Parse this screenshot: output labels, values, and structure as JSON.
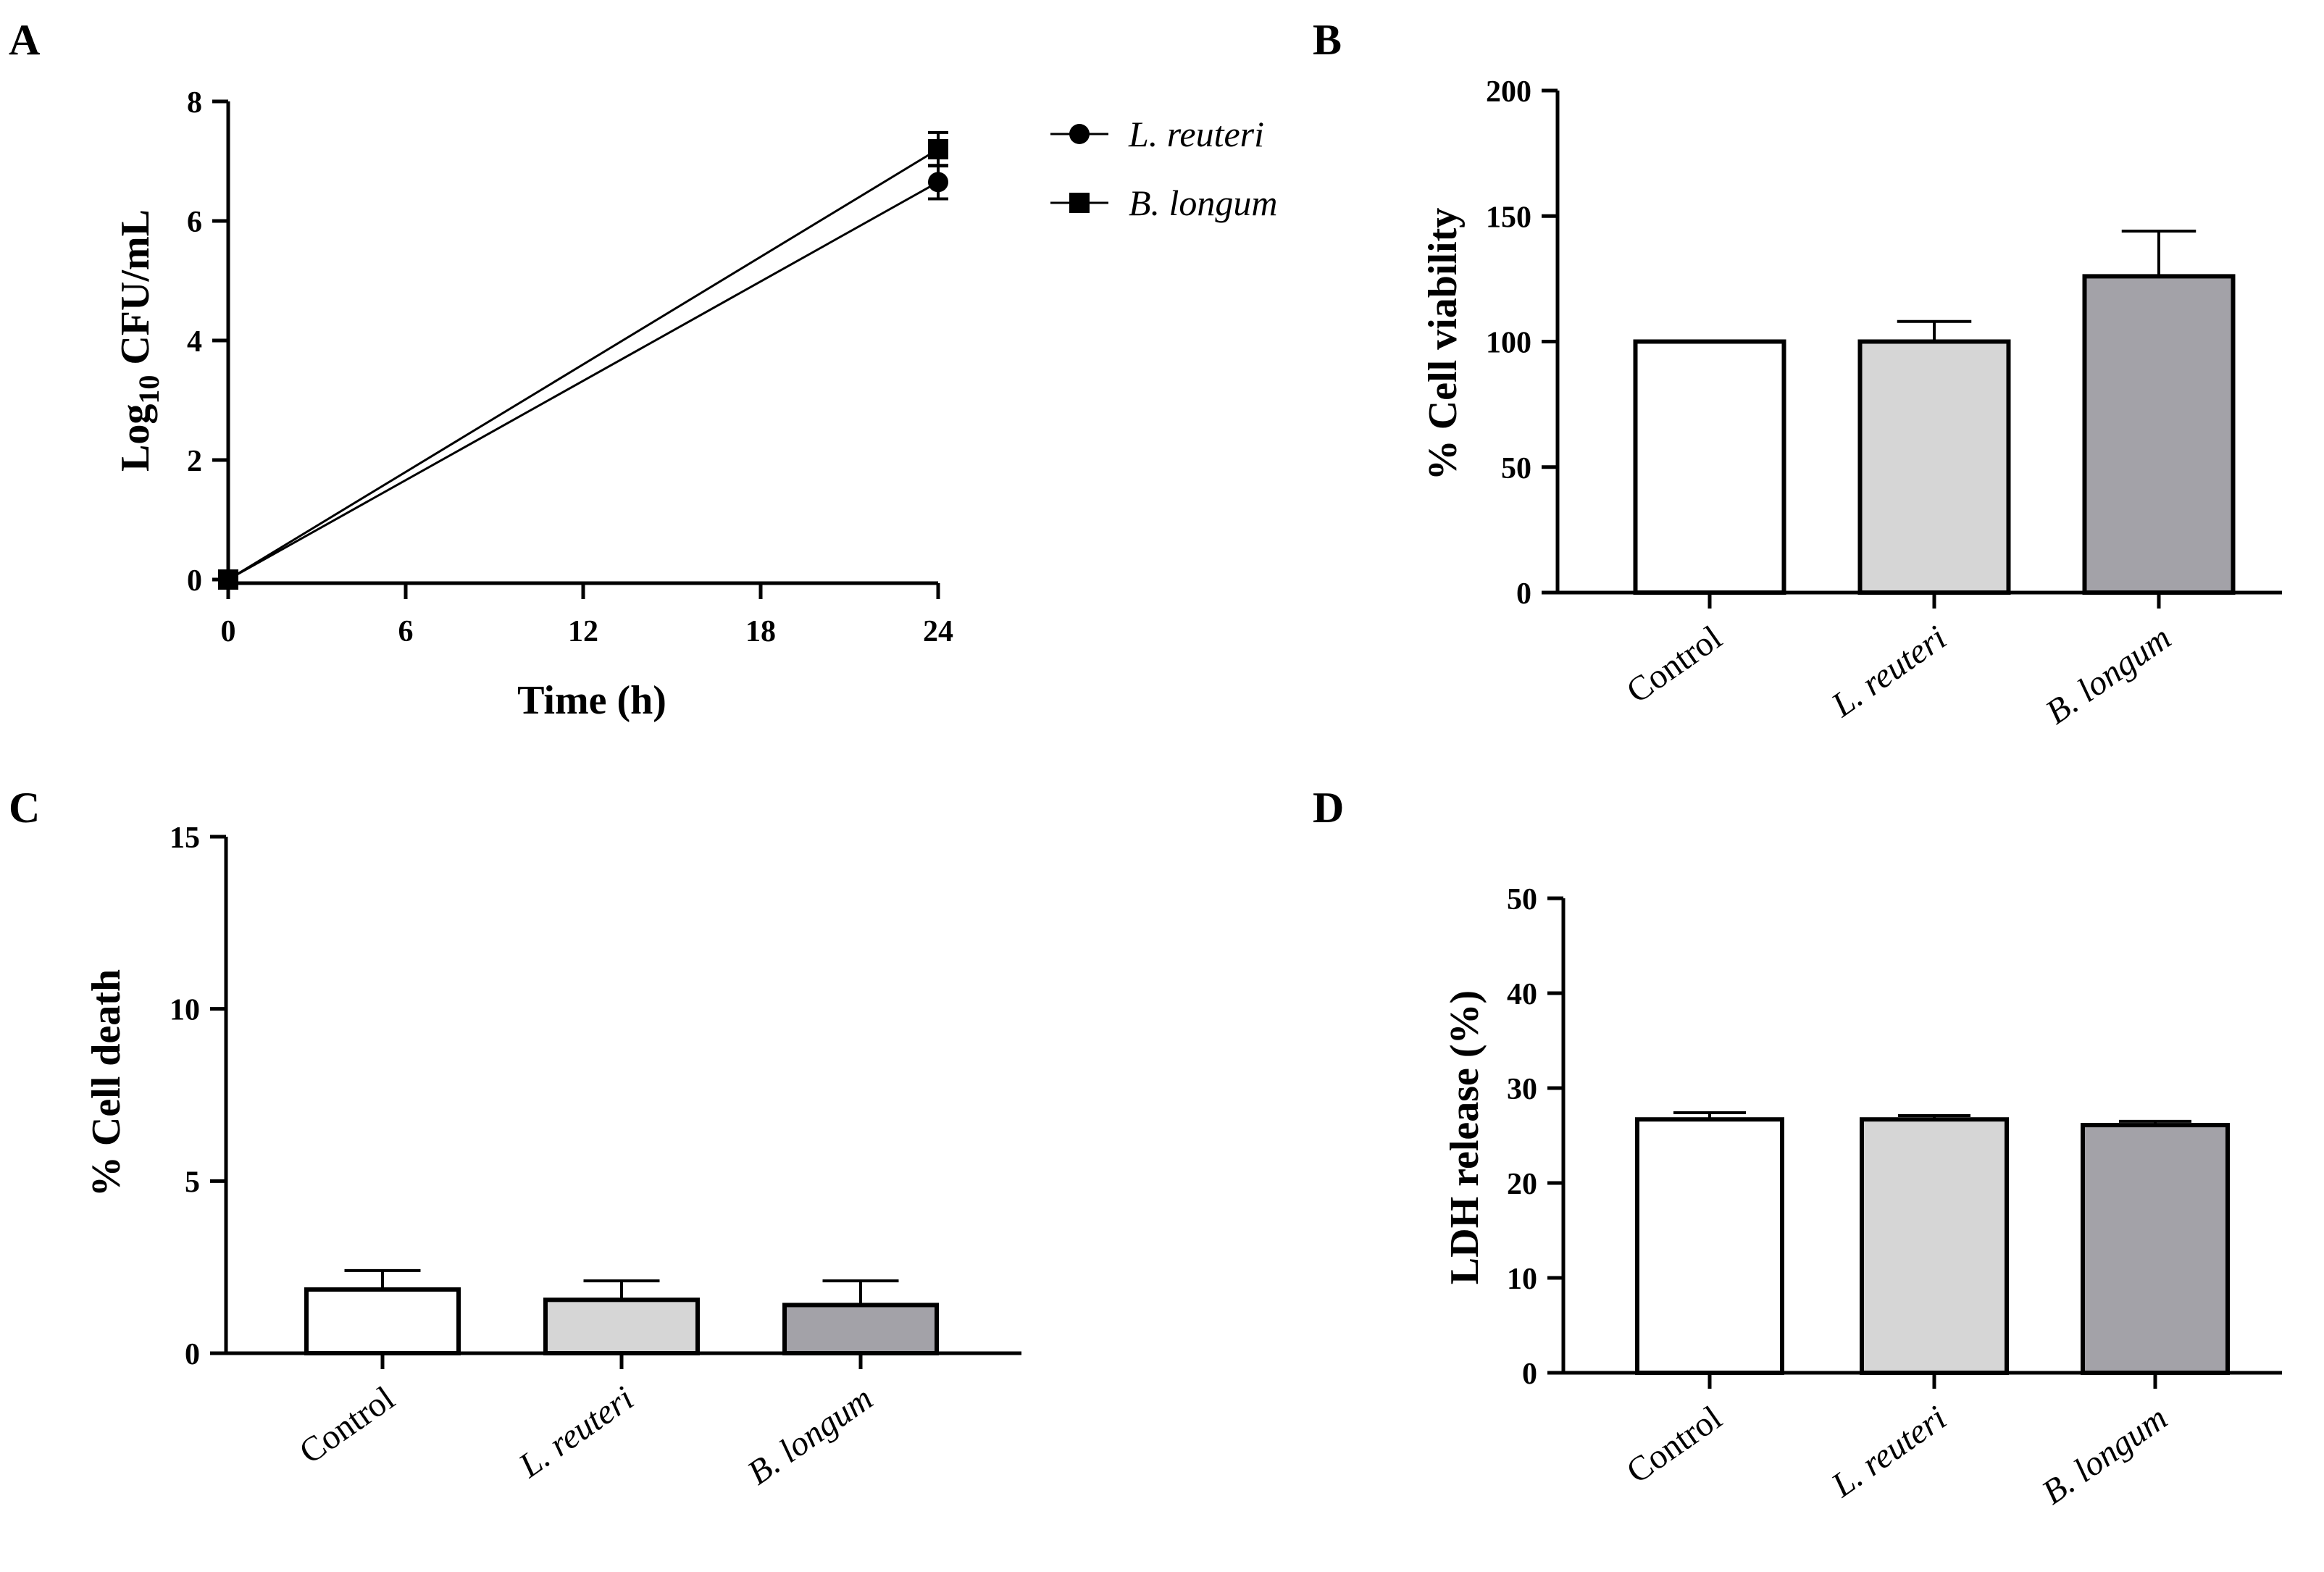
{
  "panels": {
    "A": {
      "letter": "A",
      "chart_data": {
        "type": "line",
        "title": "",
        "xlabel": "Time (h)",
        "ylabel_main": "Log",
        "ylabel_sub": "10",
        "ylabel_rest": " CFU/mL",
        "x": [
          0,
          24
        ],
        "xticks": [
          "0",
          "6",
          "12",
          "18",
          "24"
        ],
        "xlim": [
          0,
          24
        ],
        "yticks": [
          "0",
          "2",
          "4",
          "6",
          "8"
        ],
        "ylim": [
          0,
          8
        ],
        "series": [
          {
            "name": "L. reuteri",
            "marker": "circle",
            "values": [
              0,
              6.65
            ],
            "errors": [
              0.05,
              0.28
            ]
          },
          {
            "name": "B. longum",
            "marker": "square",
            "values": [
              0,
              7.2
            ],
            "errors": [
              0.05,
              0.28
            ]
          }
        ],
        "legend_position": "top-right"
      }
    },
    "B": {
      "letter": "B",
      "chart_data": {
        "type": "bar",
        "title": "",
        "ylabel": "% Cell viability",
        "categories": [
          "Control",
          "L. reuteri",
          "B. longum"
        ],
        "italic": [
          false,
          true,
          true
        ],
        "values": [
          100,
          100,
          126
        ],
        "errors": [
          0,
          8,
          18
        ],
        "colors": [
          "#ffffff",
          "#d6d6d6",
          "#a3a2a8"
        ],
        "yticks": [
          "0",
          "50",
          "100",
          "150",
          "200"
        ],
        "ylim": [
          0,
          200
        ]
      }
    },
    "C": {
      "letter": "C",
      "chart_data": {
        "type": "bar",
        "title": "",
        "ylabel": "% Cell death",
        "categories": [
          "Control",
          "L. reuteri",
          "B. longum"
        ],
        "italic": [
          false,
          true,
          true
        ],
        "values": [
          1.85,
          1.55,
          1.4
        ],
        "errors": [
          0.55,
          0.55,
          0.7
        ],
        "colors": [
          "#ffffff",
          "#d6d6d6",
          "#a3a2a8"
        ],
        "yticks": [
          "0",
          "5",
          "10",
          "15"
        ],
        "ylim": [
          0,
          15
        ]
      }
    },
    "D": {
      "letter": "D",
      "chart_data": {
        "type": "bar",
        "title": "",
        "ylabel": "LDH release (%)",
        "categories": [
          "Control",
          "L. reuteri",
          "B. longum"
        ],
        "italic": [
          false,
          true,
          true
        ],
        "values": [
          26.7,
          26.7,
          26.1
        ],
        "errors": [
          0.7,
          0.4,
          0.4
        ],
        "colors": [
          "#ffffff",
          "#d6d6d6",
          "#a3a2a8"
        ],
        "yticks": [
          "0",
          "10",
          "20",
          "30",
          "40",
          "50"
        ],
        "ylim": [
          0,
          50
        ]
      }
    }
  }
}
